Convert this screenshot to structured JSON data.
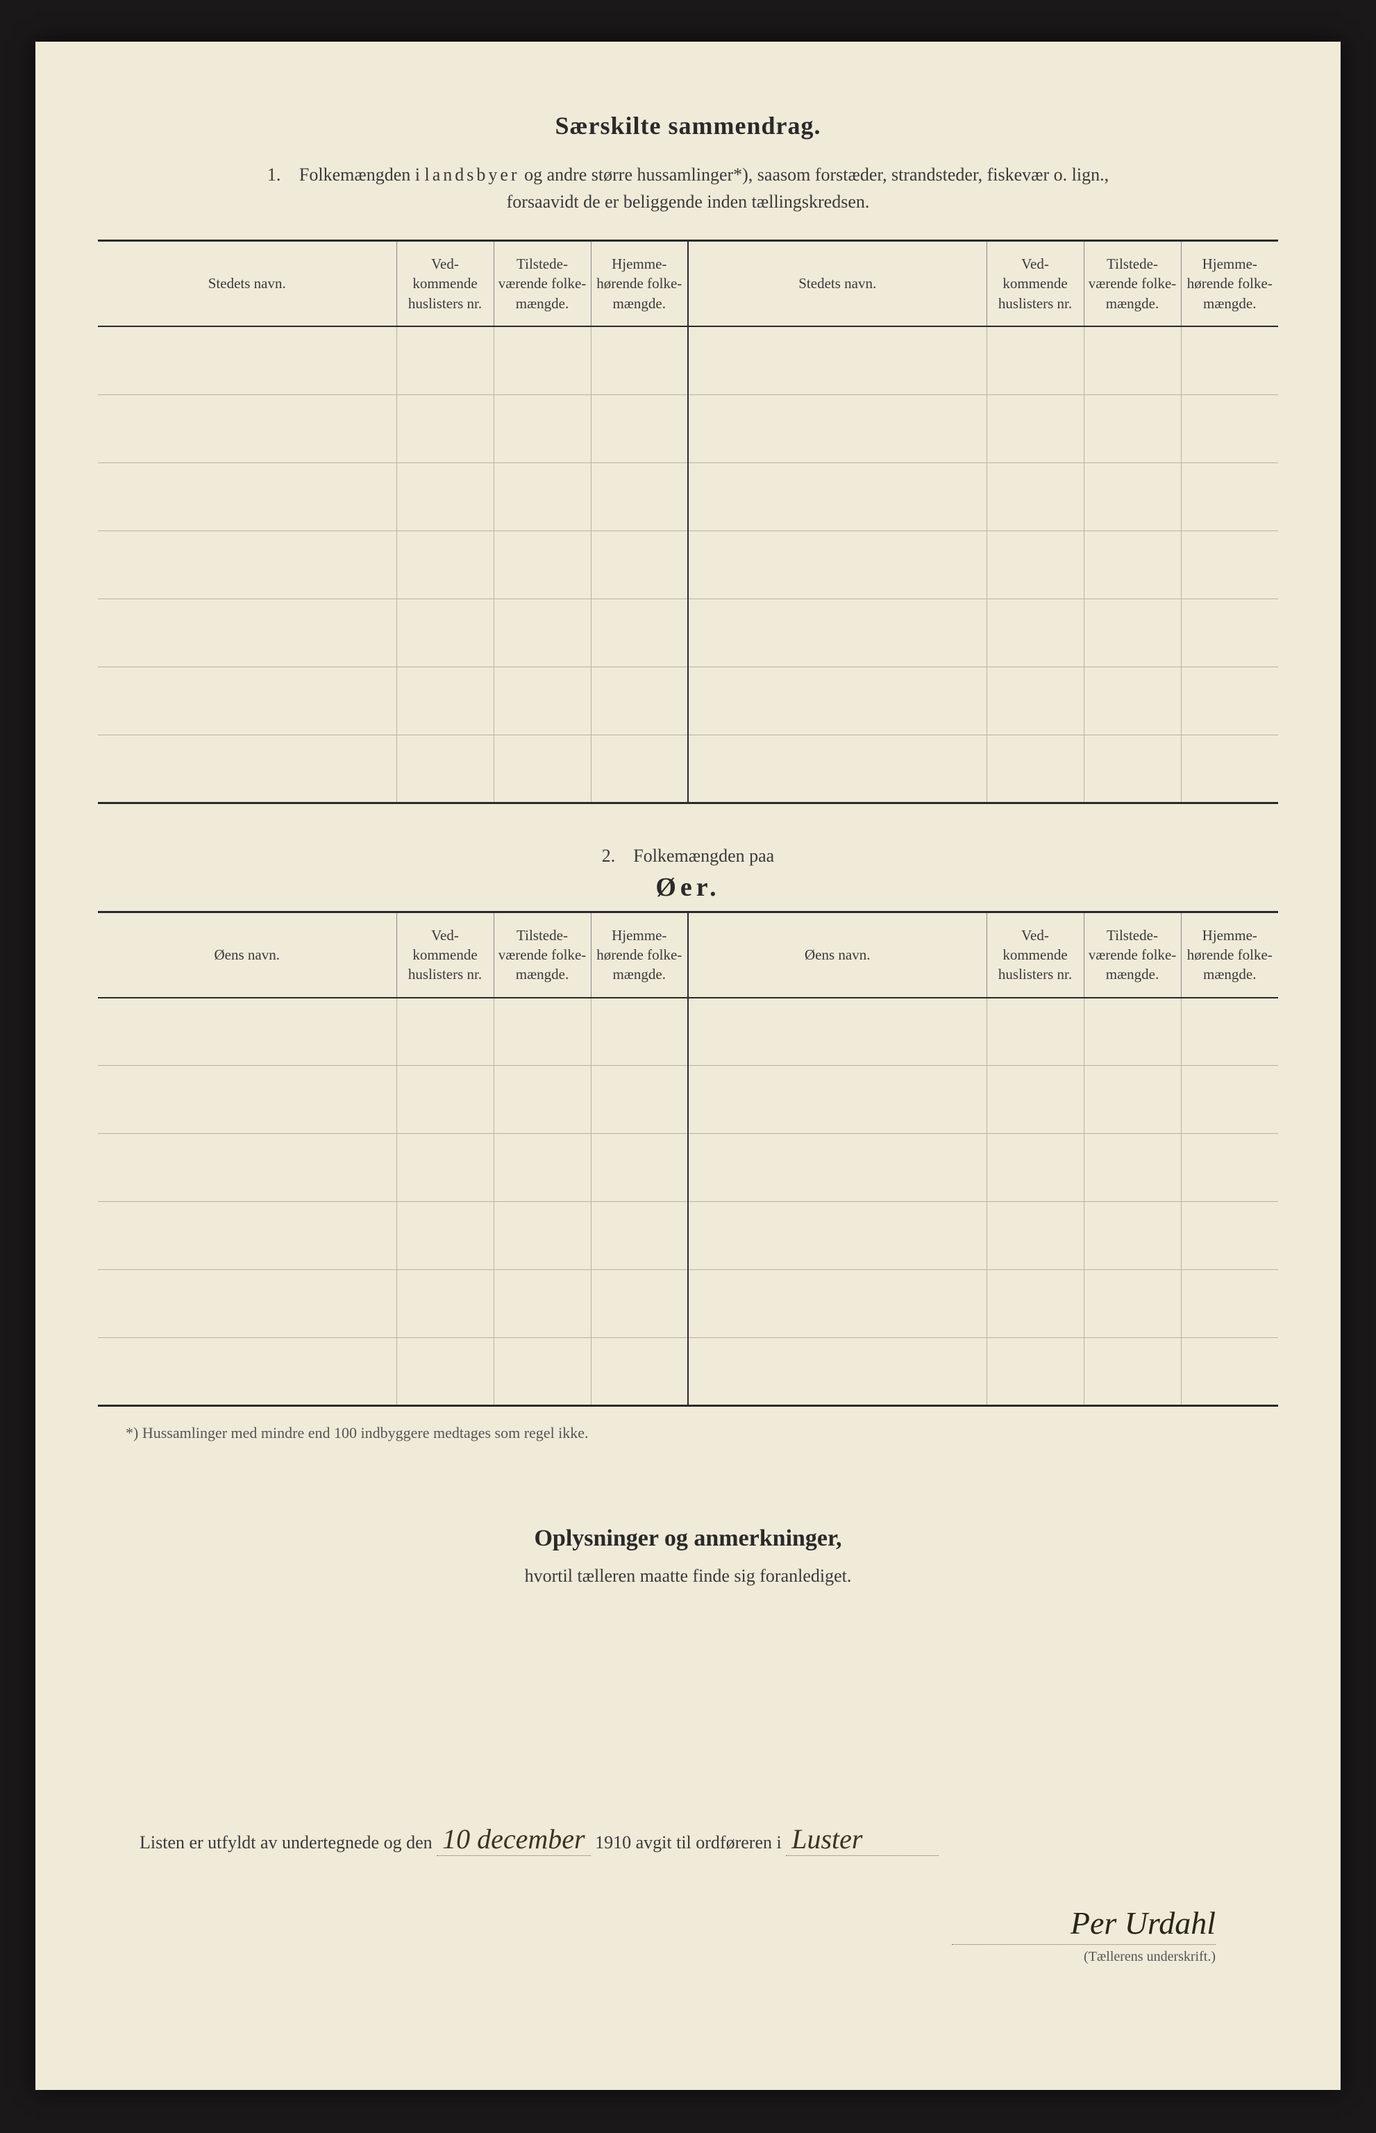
{
  "title": "Særskilte sammendrag.",
  "section1": {
    "number": "1.",
    "text_a": "Folkemængden i ",
    "text_spaced": "landsbyer",
    "text_b": " og andre større hussamlinger*), saasom forstæder, strandsteder, fiskevær o. lign.,",
    "text_c": "forsaavidt de er beliggende inden tællingskredsen."
  },
  "table1": {
    "headers": {
      "name": "Stedets navn.",
      "col1": "Ved-\nkommende\nhuslisters\nnr.",
      "col2": "Tilstede-\nværende\nfolke-\nmængde.",
      "col3": "Hjemme-\nhørende\nfolke-\nmængde."
    },
    "row_count": 7
  },
  "section2": {
    "number": "2.",
    "text": "Folkemængden paa",
    "title": "Øer."
  },
  "table2": {
    "headers": {
      "name": "Øens navn.",
      "col1": "Ved-\nkommende\nhuslisters\nnr.",
      "col2": "Tilstede-\nværende\nfolke-\nmængde.",
      "col3": "Hjemme-\nhørende\nfolke-\nmængde."
    },
    "row_count": 6
  },
  "footnote": "*) Hussamlinger med mindre end 100 indbyggere medtages som regel ikke.",
  "section3": {
    "heading": "Oplysninger og anmerkninger,",
    "sub": "hvortil tælleren maatte finde sig foranlediget."
  },
  "signature": {
    "prefix": "Listen er utfyldt av undertegnede og den",
    "date_hand": "10 december",
    "year": "1910",
    "mid": "avgit til ordføreren i",
    "place_hand": "Luster",
    "name": "Per Urdahl",
    "caption": "(Tællerens underskrift.)"
  },
  "colors": {
    "page_bg": "#f0ead9",
    "frame_bg": "#1a1818",
    "text": "#3a3a3a",
    "strong": "#2a2a2a",
    "rule_light": "#b8b2a0",
    "handwriting": "#3a3520"
  }
}
